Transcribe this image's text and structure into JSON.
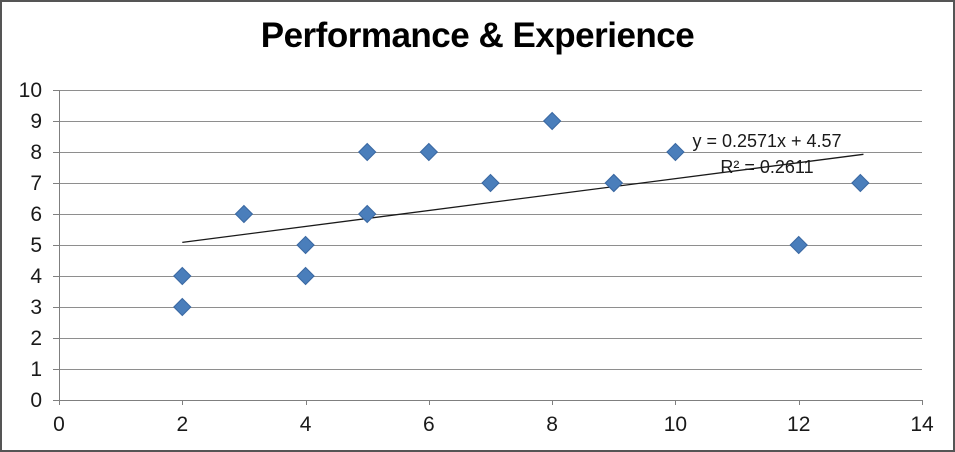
{
  "chart_data": {
    "type": "scatter",
    "title": "Performance & Experience",
    "xlabel": "",
    "ylabel": "",
    "xlim": [
      0,
      14
    ],
    "ylim": [
      0,
      10
    ],
    "x_ticks": [
      0,
      2,
      4,
      6,
      8,
      10,
      12,
      14
    ],
    "y_ticks": [
      0,
      1,
      2,
      3,
      4,
      5,
      6,
      7,
      8,
      9,
      10
    ],
    "grid": "horizontal-only",
    "legend": "none",
    "marker": "diamond",
    "points": [
      {
        "x": 2,
        "y": 3
      },
      {
        "x": 2,
        "y": 4
      },
      {
        "x": 3,
        "y": 6
      },
      {
        "x": 4,
        "y": 4
      },
      {
        "x": 4,
        "y": 5
      },
      {
        "x": 5,
        "y": 6
      },
      {
        "x": 5,
        "y": 8
      },
      {
        "x": 6,
        "y": 8
      },
      {
        "x": 7,
        "y": 7
      },
      {
        "x": 8,
        "y": 9
      },
      {
        "x": 9,
        "y": 7
      },
      {
        "x": 9,
        "y": 7
      },
      {
        "x": 10,
        "y": 8
      },
      {
        "x": 12,
        "y": 5
      },
      {
        "x": 13,
        "y": 7
      }
    ],
    "trendline": {
      "slope": 0.2571,
      "intercept": 4.57,
      "x_start": 2,
      "x_end": 13.05,
      "equation_label": "y = 0.2571x + 4.57",
      "r2_label": "R² = 0.2611"
    },
    "colors": {
      "marker_fill": "#4A7EBB",
      "marker_stroke": "#3A68A2",
      "gridline": "#8e8e8e",
      "axis": "#7f7f7f",
      "trendline": "#1a1a1a",
      "tick_text": "#1a1a1a",
      "title_text": "#000000"
    }
  }
}
